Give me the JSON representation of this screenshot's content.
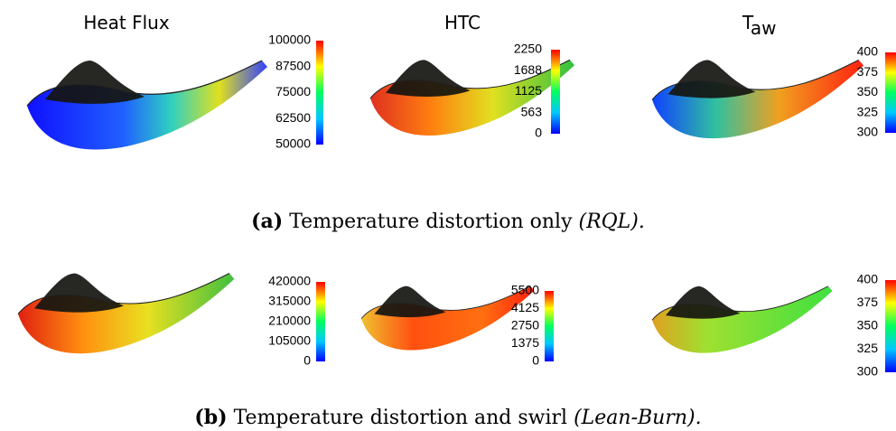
{
  "headers": {
    "heat_flux": "Heat Flux",
    "htc": "HTC",
    "taw": {
      "base": "T",
      "sub": "aw"
    }
  },
  "rows": [
    {
      "colorbars": [
        [
          100000,
          87500,
          75000,
          62500,
          50000
        ],
        [
          2250,
          1688,
          1125,
          563,
          0
        ],
        [
          400,
          375,
          350,
          325,
          300
        ]
      ],
      "caption": {
        "label": "(a)",
        "text": "Temperature distortion only",
        "note": "(RQL)."
      }
    },
    {
      "colorbars": [
        [
          420000,
          315000,
          210000,
          105000,
          0
        ],
        [
          5500,
          4125,
          2750,
          1375,
          0
        ],
        [
          400,
          375,
          350,
          325,
          300
        ]
      ],
      "caption": {
        "label": "(b)",
        "text": "Temperature distortion and swirl",
        "note": "(Lean-Burn)."
      }
    }
  ]
}
